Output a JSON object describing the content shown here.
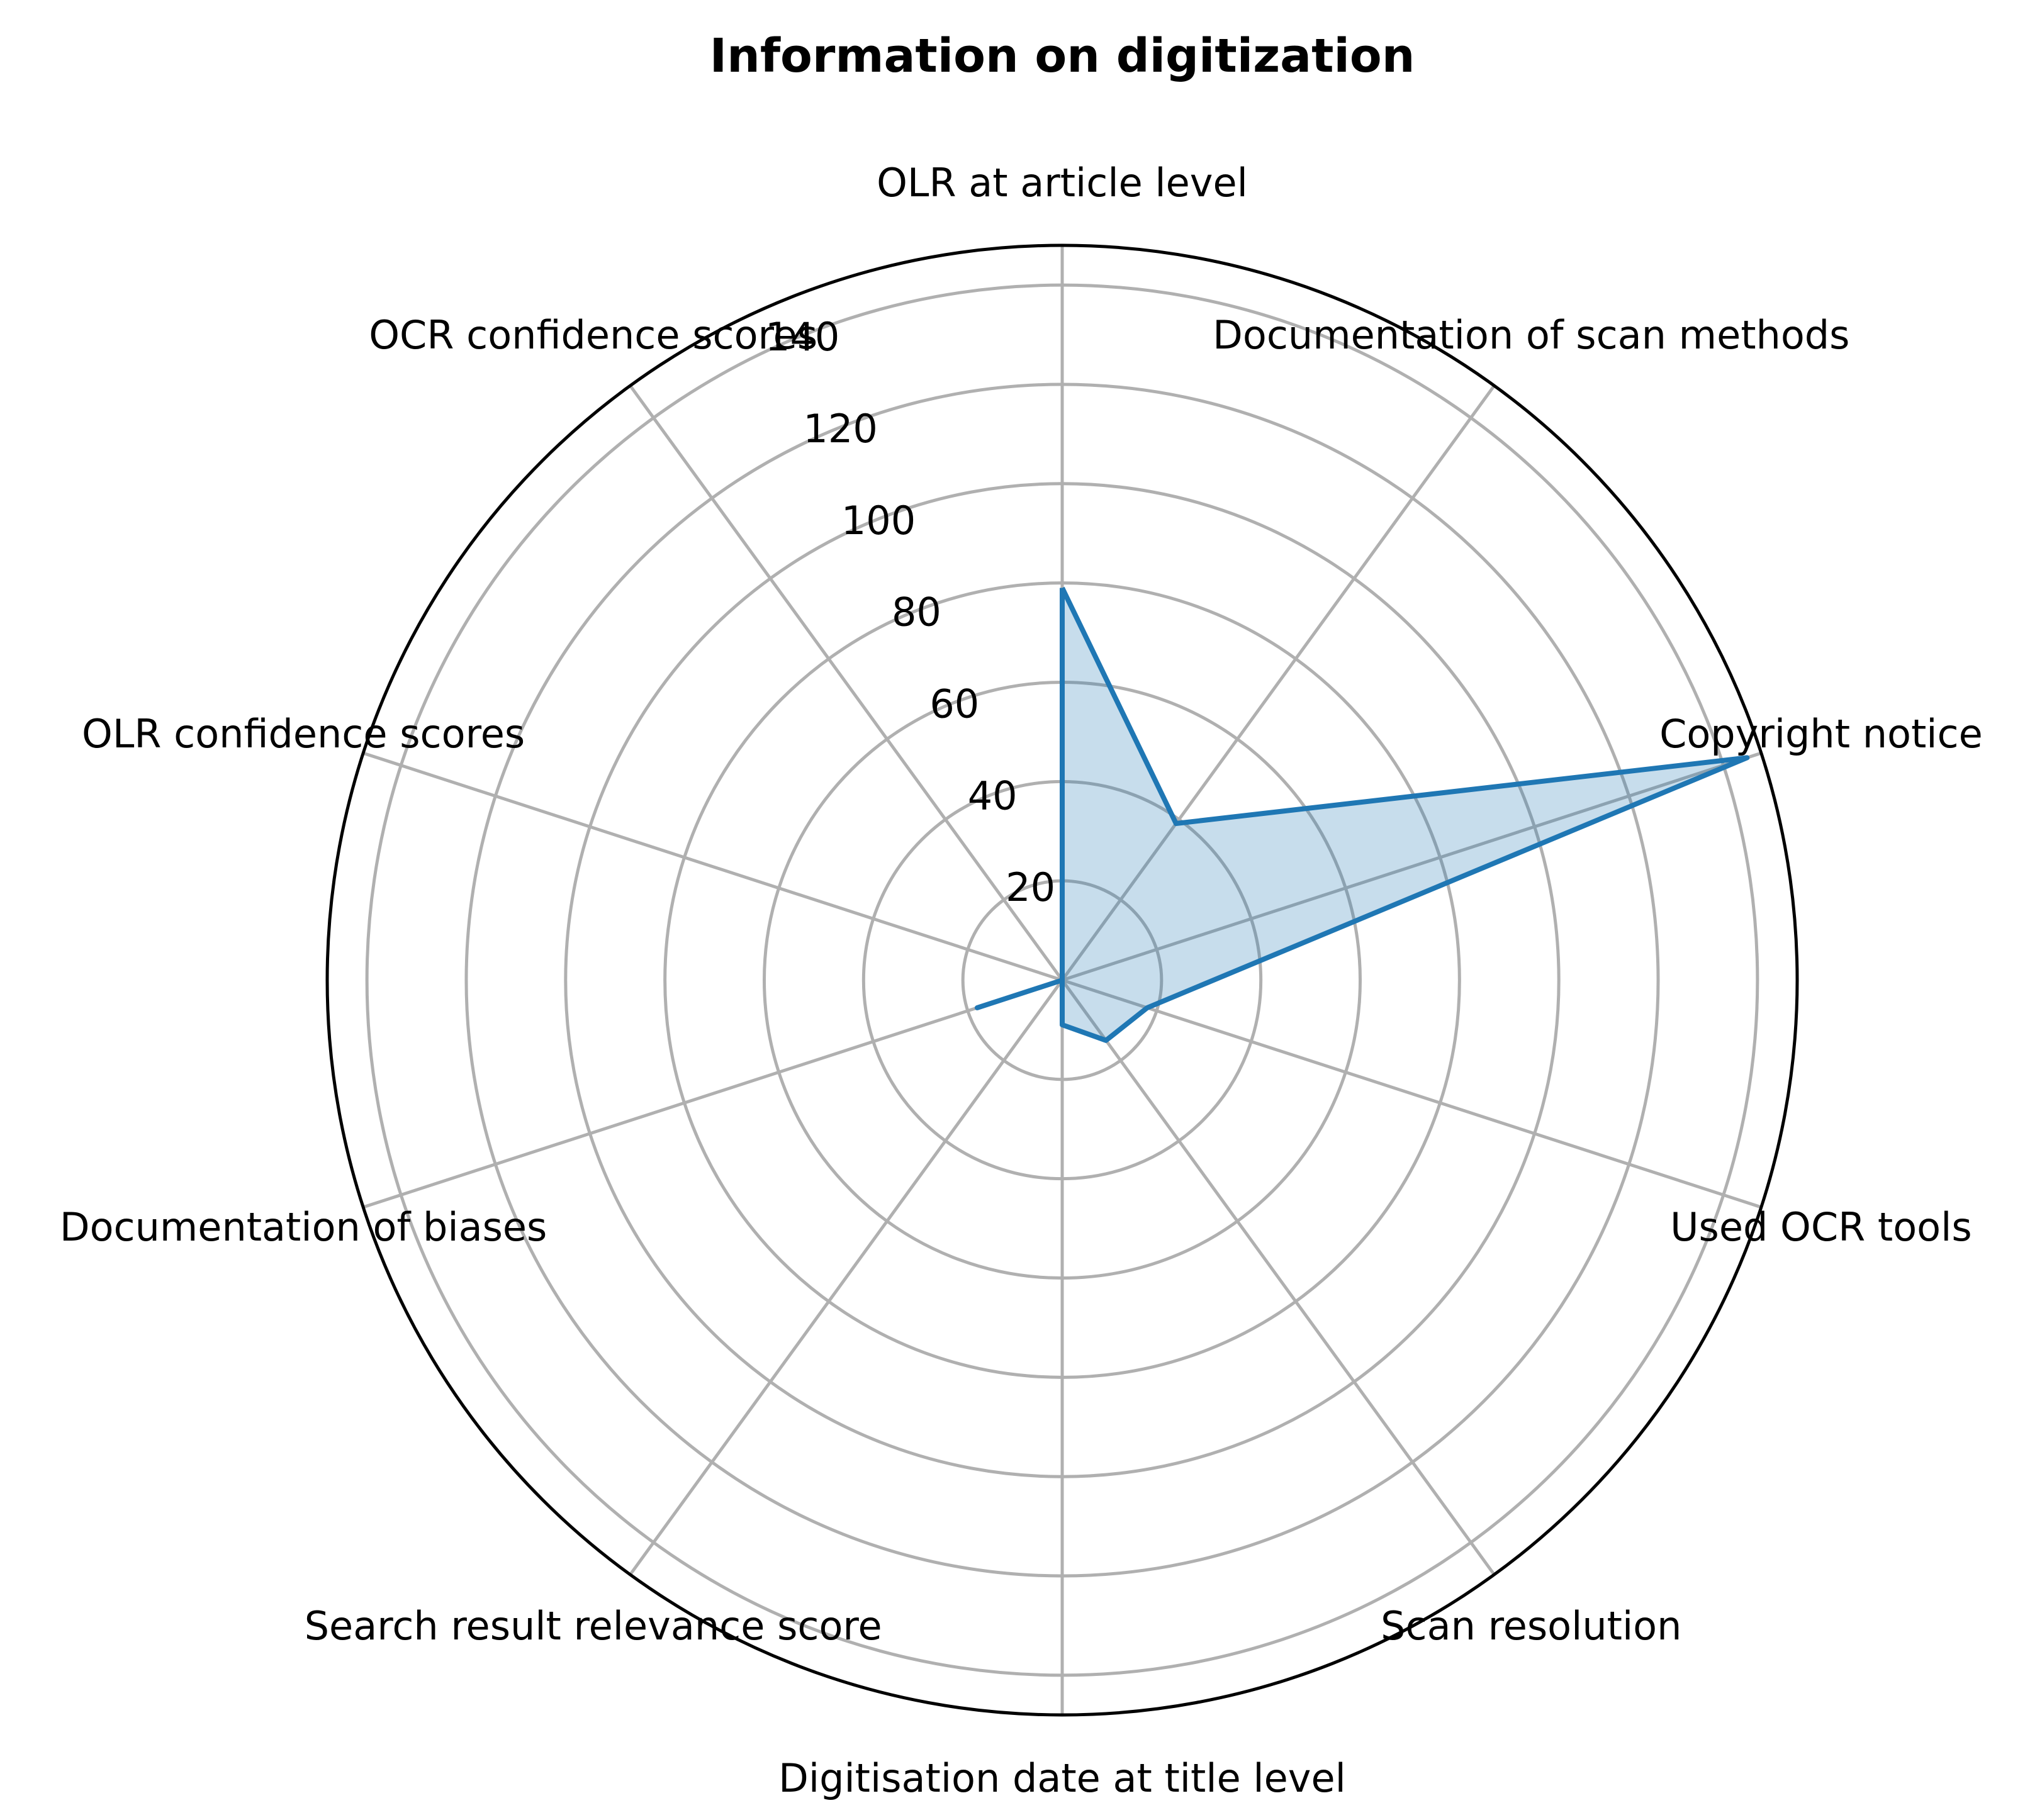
{
  "chart_data": {
    "type": "radar",
    "title": "Information on digitization",
    "categories": [
      "OLR at article level",
      "Documentation of scan methods",
      "Copyright notice",
      "Used OCR tools",
      "Scan resolution",
      "Digitisation date at title level",
      "Search result relevance score",
      "Documentation of biases",
      "OLR confidence scores",
      "OCR confidence scores"
    ],
    "values": [
      79,
      39,
      145,
      18,
      15,
      9,
      0,
      18,
      0,
      0
    ],
    "radial_ticks": [
      20,
      40,
      60,
      80,
      100,
      120,
      140
    ],
    "rlim": [
      0,
      148
    ],
    "grid": true,
    "colors": {
      "series": "#1f77b4",
      "grid": "#b0b0b0",
      "frame": "#000000"
    }
  }
}
